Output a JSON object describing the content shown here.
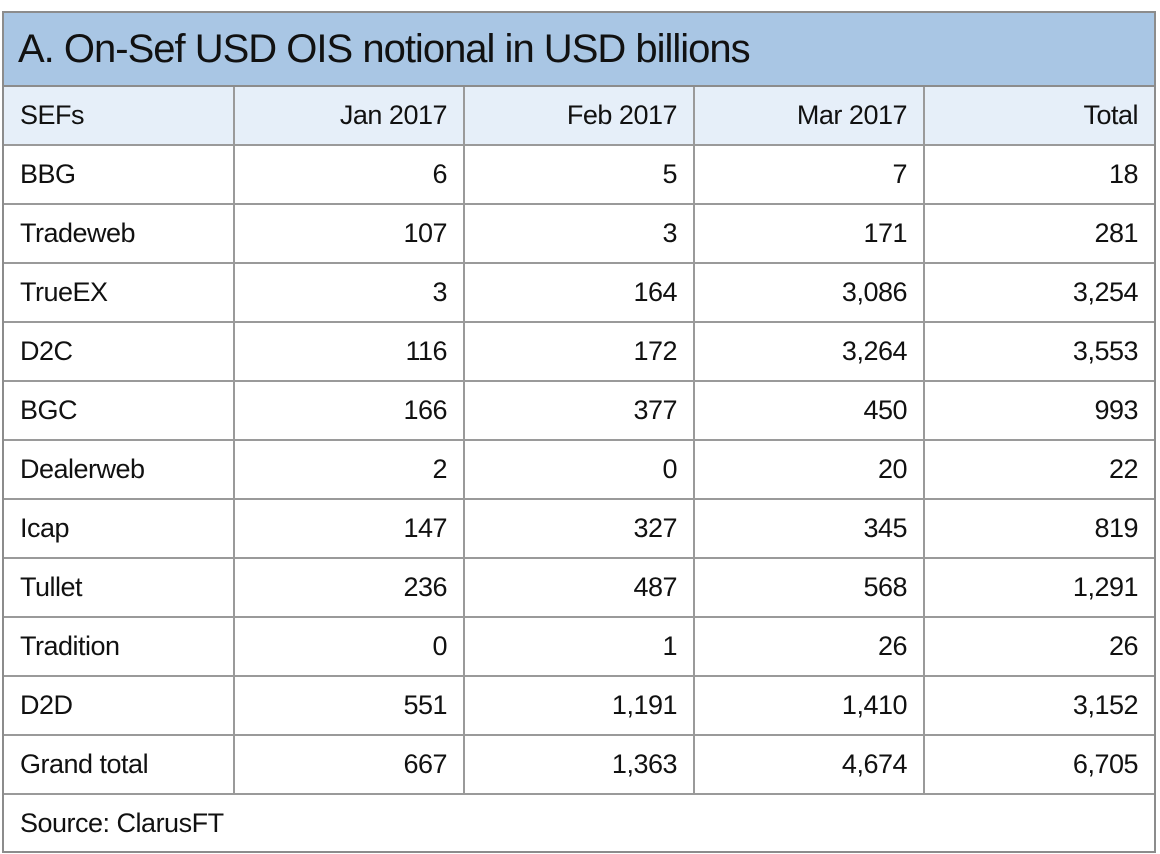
{
  "chart_data": {
    "type": "table",
    "title": "A. On-Sef USD OIS notional in USD billions",
    "columns": [
      "SEFs",
      "Jan 2017",
      "Feb 2017",
      "Mar 2017",
      "Total"
    ],
    "rows": [
      [
        "BBG",
        "6",
        "5",
        "7",
        "18"
      ],
      [
        "Tradeweb",
        "107",
        "3",
        "171",
        "281"
      ],
      [
        "TrueEX",
        "3",
        "164",
        "3,086",
        "3,254"
      ],
      [
        "D2C",
        "116",
        "172",
        "3,264",
        "3,553"
      ],
      [
        "BGC",
        "166",
        "377",
        "450",
        "993"
      ],
      [
        "Dealerweb",
        "2",
        "0",
        "20",
        "22"
      ],
      [
        "Icap",
        "147",
        "327",
        "345",
        "819"
      ],
      [
        "Tullet",
        "236",
        "487",
        "568",
        "1,291"
      ],
      [
        "Tradition",
        "0",
        "1",
        "26",
        "26"
      ],
      [
        "D2D",
        "551",
        "1,191",
        "1,410",
        "3,152"
      ],
      [
        "Grand total",
        "667",
        "1,363",
        "4,674",
        "6,705"
      ]
    ],
    "source": "Source: ClarusFT"
  },
  "colors": {
    "title_bg": "#a9c6e4",
    "header_bg": "#e6eff9",
    "border": "#9a9a9a"
  }
}
